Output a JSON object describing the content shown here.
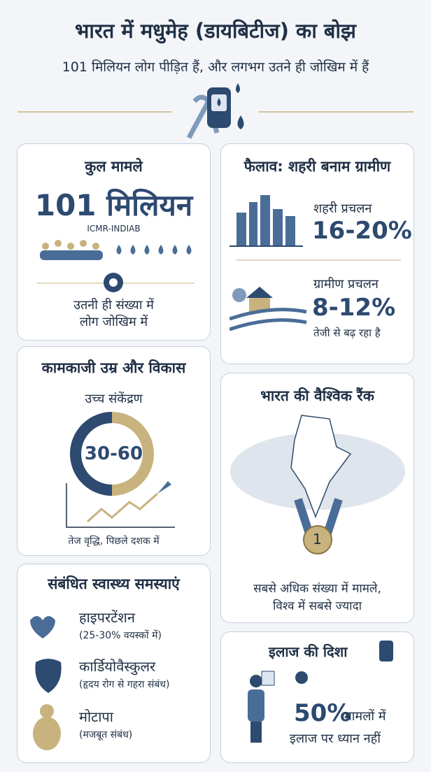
{
  "header": {
    "title": "भारत में मधुमेह (डायबिटीज) का बोझ",
    "subtitle": "101 मिलियन लोग पीड़ित हैं, और लगभग उतने ही जोखिम में हैं"
  },
  "total_cases": {
    "title": "कुल मामले",
    "figure": "101 मिलियन",
    "source": "ICMR-INDIAB",
    "risk_lines": [
      "उतनी ही संख्या में",
      "लोग जोखिम में"
    ]
  },
  "urban_rural": {
    "title": "फैलाव: शहरी बनाम ग्रामीण",
    "urban_label": "शहरी प्रचलन",
    "urban_value": "16-20%",
    "rural_label": "ग्रामीण प्रचलन",
    "rural_value": "8-12%",
    "rural_note": "तेजी से बढ़ रहा है"
  },
  "working_age": {
    "title": "कामकाजी उम्र और विकास",
    "label": "उच्च संकेंद्रण",
    "range": "30-60",
    "note": "तेज वृद्धि, पिछले दशक में"
  },
  "global_rank": {
    "title": "भारत की वैश्विक रैंक",
    "rank": "1",
    "lines": [
      "सबसे अधिक संख्या में मामले,",
      "विश्व में सबसे ज्यादा"
    ]
  },
  "related": {
    "title": "संबंधित स्वास्थ्य समस्याएं",
    "items": [
      {
        "name": "हाइपरटेंशन",
        "note": "(25-30% वयस्कों में)"
      },
      {
        "name": "कार्डियोवैस्कुलर",
        "note": "(हृदय रोग से गहरा संबंध)"
      },
      {
        "name": "मोटापा",
        "note": "(मजबूत संबंध)"
      }
    ]
  },
  "treatment": {
    "title": "इलाज की दिशा",
    "figure": "50%",
    "lines": [
      "मामलों में",
      "इलाज पर ध्यान नहीं"
    ]
  }
}
